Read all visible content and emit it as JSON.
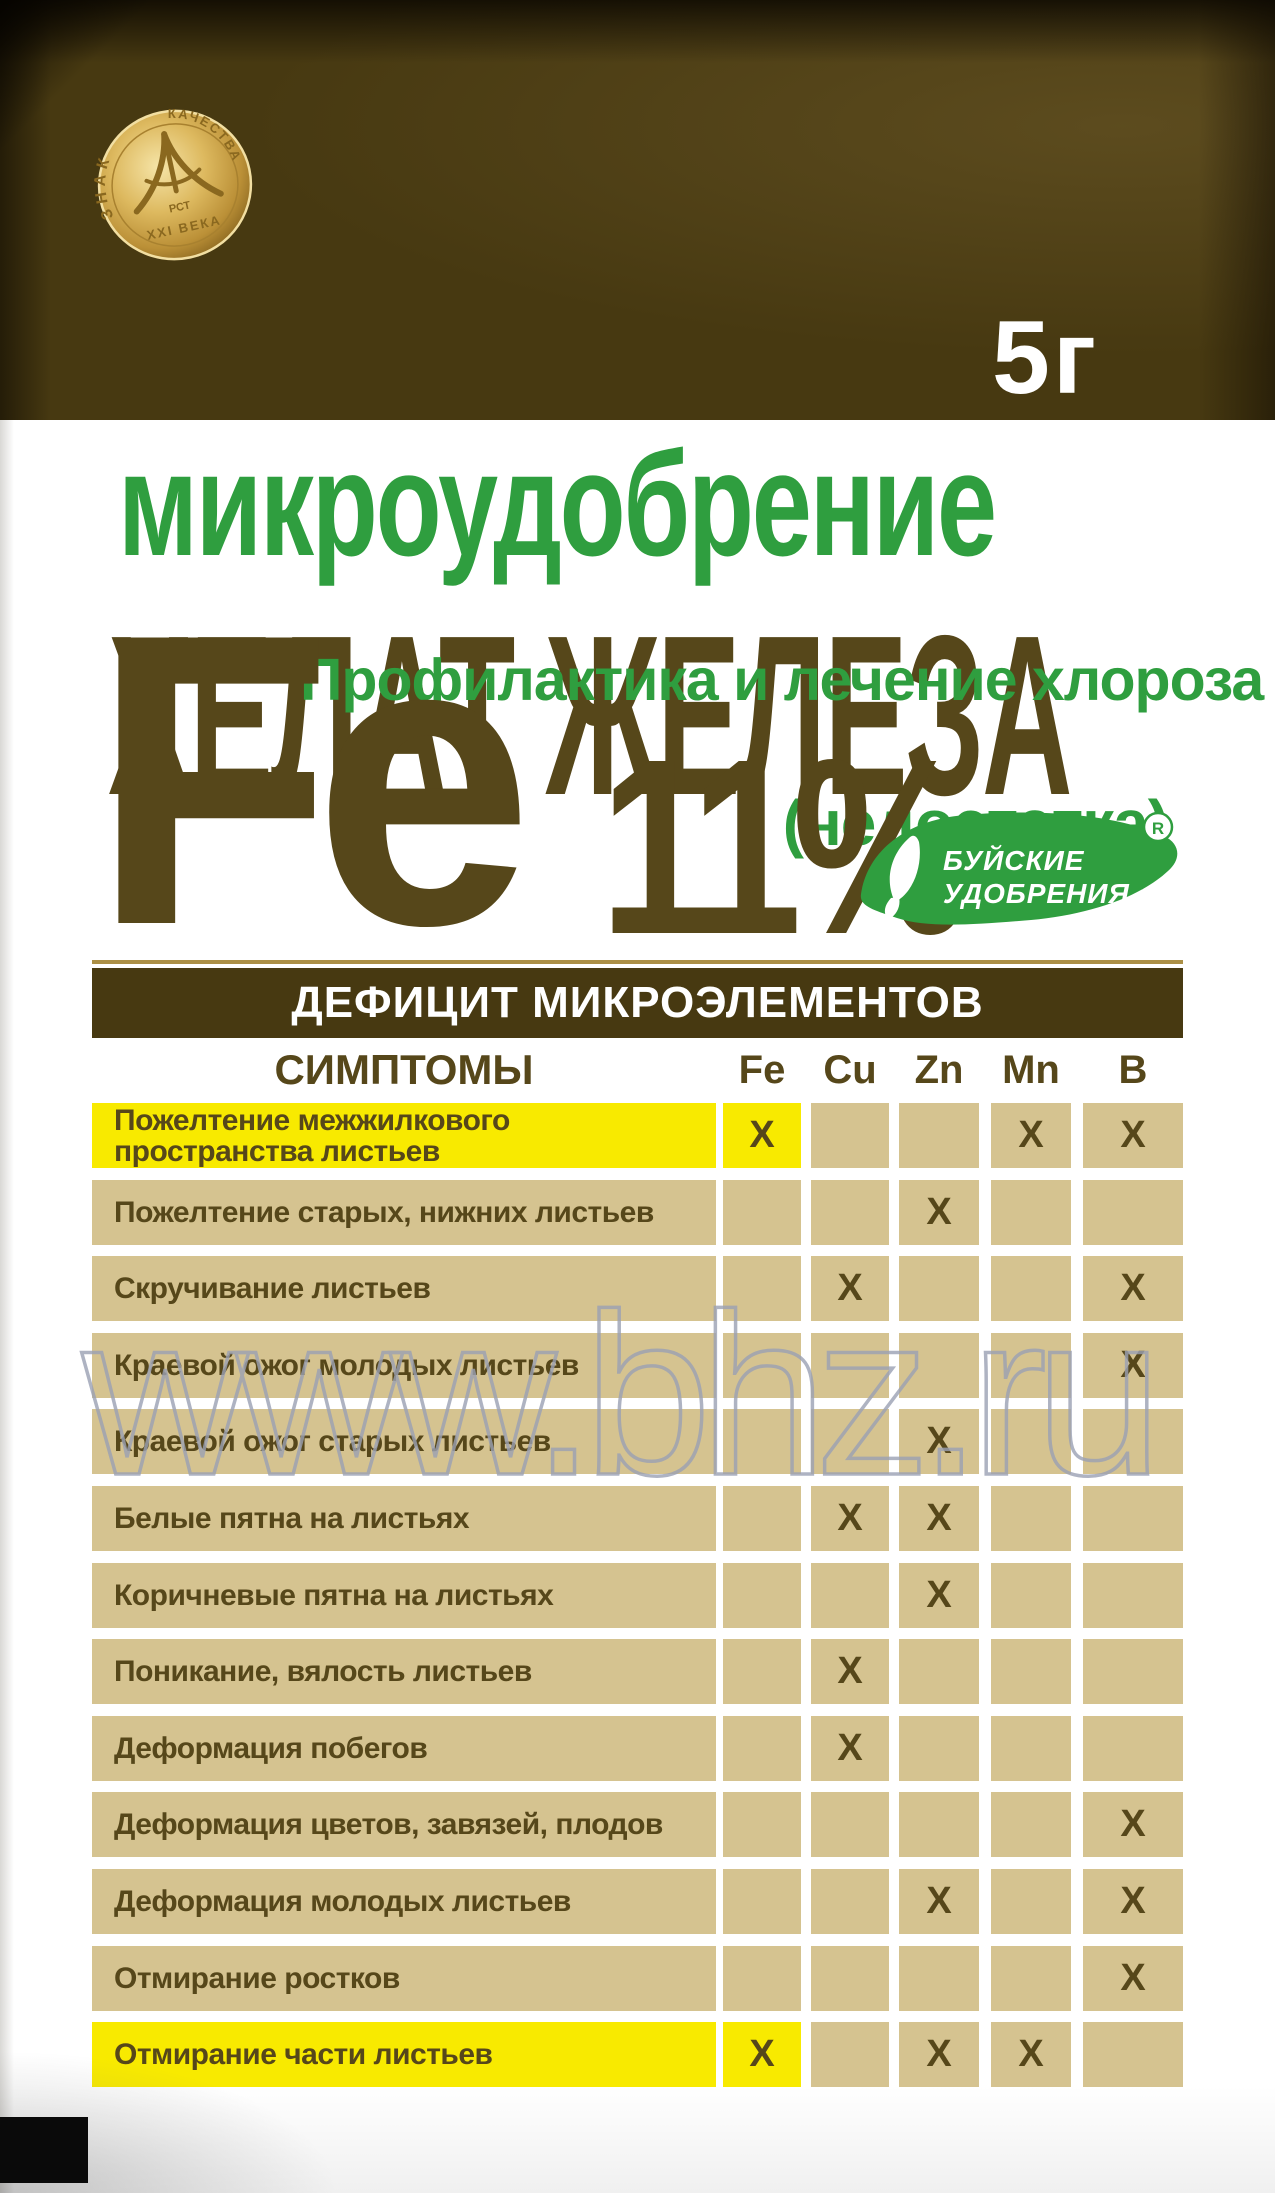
{
  "package": {
    "weight": "5г",
    "medal": {
      "arc_left": "ЗНАК",
      "arc_right": "КАЧЕСТВА",
      "center": "РСТ",
      "bottom": "XXI ВЕКА"
    },
    "product_type": "микроудобрение",
    "product_name": "ХЕЛАТ ЖЕЛЕЗА",
    "subtitle_line1": "Профилактика и лечение хлороза",
    "subtitle_line2": "(недостатка)",
    "element_symbol": "Fe",
    "element_percent": "11%",
    "logo": {
      "line1": "БУЙСКИЕ",
      "line2": "УДОБРЕНИЯ",
      "registered": "R"
    }
  },
  "table": {
    "section_title": "ДЕФИЦИТ МИКРОЭЛЕМЕНТОВ",
    "symptoms_header": "СИМПТОМЫ",
    "columns": [
      "Fe",
      "Cu",
      "Zn",
      "Mn",
      "B"
    ],
    "mark": "X",
    "rows": [
      {
        "symptom": "Пожелтение межжилкового пространства листьев",
        "highlight": true,
        "marks": [
          "Fe",
          "Mn",
          "B"
        ]
      },
      {
        "symptom": "Пожелтение старых, нижних листьев",
        "highlight": false,
        "marks": [
          "Zn"
        ]
      },
      {
        "symptom": "Скручивание листьев",
        "highlight": false,
        "marks": [
          "Cu",
          "B"
        ]
      },
      {
        "symptom": "Краевой ожог молодых листьев",
        "highlight": false,
        "marks": [
          "B"
        ]
      },
      {
        "symptom": "Краевой ожог старых листьев",
        "highlight": false,
        "marks": [
          "Zn"
        ]
      },
      {
        "symptom": "Белые пятна на листьях",
        "highlight": false,
        "marks": [
          "Cu",
          "Zn"
        ]
      },
      {
        "symptom": "Коричневые пятна на листьях",
        "highlight": false,
        "marks": [
          "Zn"
        ]
      },
      {
        "symptom": "Поникание, вялость листьев",
        "highlight": false,
        "marks": [
          "Cu"
        ]
      },
      {
        "symptom": "Деформация побегов",
        "highlight": false,
        "marks": [
          "Cu"
        ]
      },
      {
        "symptom": "Деформация цветов, завязей, плодов",
        "highlight": false,
        "marks": [
          "B"
        ]
      },
      {
        "symptom": "Деформация молодых листьев",
        "highlight": false,
        "marks": [
          "Zn",
          "B"
        ]
      },
      {
        "symptom": "Отмирание ростков",
        "highlight": false,
        "marks": [
          "B"
        ]
      },
      {
        "symptom": "Отмирание части листьев",
        "highlight": true,
        "marks": [
          "Fe",
          "Zn",
          "Mn"
        ]
      }
    ]
  },
  "watermark": "www.bhz.ru",
  "colors": {
    "header_brown": "#473911",
    "text_brown": "#56471a",
    "green": "#2f9e3f",
    "cell_beige": "#d5c390",
    "highlight_yellow": "#f8ea00",
    "watermark_gray": "#9ba1b4",
    "medal_gold": "#d9b75f",
    "weight_white": "#ffffff"
  }
}
